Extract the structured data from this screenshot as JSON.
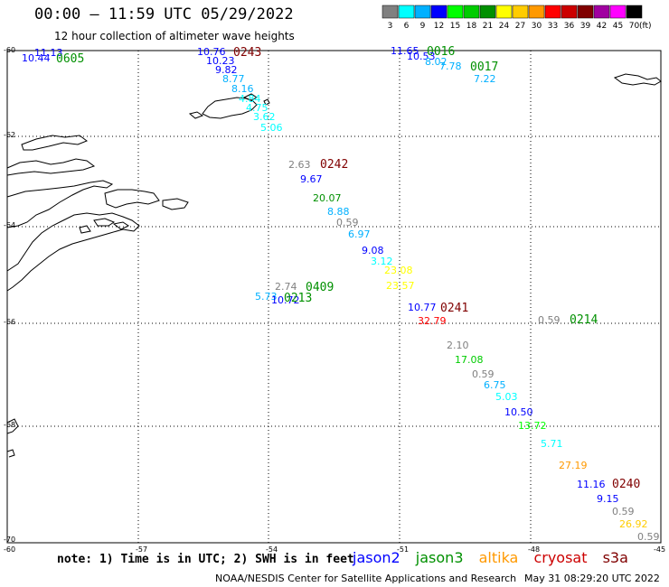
{
  "header": {
    "title": "00:00 – 11:59 UTC 05/29/2022",
    "subtitle": "12 hour collection of altimeter wave heights"
  },
  "legend": {
    "unit": "(ft)",
    "bins": [
      {
        "label": "3",
        "color": "#808080"
      },
      {
        "label": "6",
        "color": "#00ffff"
      },
      {
        "label": "9",
        "color": "#00b0ff"
      },
      {
        "label": "12",
        "color": "#0000ff"
      },
      {
        "label": "15",
        "color": "#00ff00"
      },
      {
        "label": "18",
        "color": "#00cc00"
      },
      {
        "label": "21",
        "color": "#009000"
      },
      {
        "label": "24",
        "color": "#ffff00"
      },
      {
        "label": "27",
        "color": "#ffcc00"
      },
      {
        "label": "30",
        "color": "#ff9900"
      },
      {
        "label": "33",
        "color": "#ff0000"
      },
      {
        "label": "36",
        "color": "#cc0000"
      },
      {
        "label": "39",
        "color": "#800000"
      },
      {
        "label": "42",
        "color": "#a000a0"
      },
      {
        "label": "45",
        "color": "#ff00ff"
      },
      {
        "label": "70",
        "color": "#000000"
      }
    ]
  },
  "axes": {
    "lat_labels": [
      "-60",
      "-62",
      "-64",
      "-66",
      "-68",
      "-70"
    ],
    "lon_labels": [
      "-60",
      "-57",
      "-54",
      "-51",
      "-48",
      "-45"
    ],
    "lon_range": [
      -60,
      -45
    ],
    "lat_range": [
      -70,
      -60
    ]
  },
  "swh_points": [
    {
      "text": "11.13",
      "color": "#0000ff"
    },
    {
      "text": "10.44",
      "color": "#0000ff"
    },
    {
      "text": "0605",
      "color": "#009000"
    },
    {
      "text": "10.76",
      "color": "#0000ff"
    },
    {
      "text": "0243",
      "color": "#800000"
    },
    {
      "text": "10.23",
      "color": "#0000ff"
    },
    {
      "text": "9.82",
      "color": "#0000ff"
    },
    {
      "text": "8.77",
      "color": "#00b0ff"
    },
    {
      "text": "8.16",
      "color": "#00b0ff"
    },
    {
      "text": "4.84",
      "color": "#00ffff"
    },
    {
      "text": "4.75",
      "color": "#00ffff"
    },
    {
      "text": "3.62",
      "color": "#00ffff"
    },
    {
      "text": "5.06",
      "color": "#00ffff"
    },
    {
      "text": "11.65",
      "color": "#0000ff"
    },
    {
      "text": "0016",
      "color": "#009000"
    },
    {
      "text": "10.53",
      "color": "#0000ff"
    },
    {
      "text": "8.02",
      "color": "#00b0ff"
    },
    {
      "text": "7.78",
      "color": "#00b0ff"
    },
    {
      "text": "0017",
      "color": "#009000"
    },
    {
      "text": "7.22",
      "color": "#00b0ff"
    },
    {
      "text": "2.63",
      "color": "#808080"
    },
    {
      "text": "0242",
      "color": "#800000"
    },
    {
      "text": "9.67",
      "color": "#0000ff"
    },
    {
      "text": "20.07",
      "color": "#009000"
    },
    {
      "text": "8.88",
      "color": "#00b0ff"
    },
    {
      "text": "0.59",
      "color": "#808080"
    },
    {
      "text": "6.97",
      "color": "#00b0ff"
    },
    {
      "text": "9.08",
      "color": "#0000ff"
    },
    {
      "text": "3.12",
      "color": "#00ffff"
    },
    {
      "text": "23.08",
      "color": "#ffff00"
    },
    {
      "text": "2.74",
      "color": "#808080"
    },
    {
      "text": "0409",
      "color": "#009000"
    },
    {
      "text": "5.73",
      "color": "#00b0ff"
    },
    {
      "text": "10.72",
      "color": "#0000ff"
    },
    {
      "text": "0213",
      "color": "#009000"
    },
    {
      "text": "23.57",
      "color": "#ffff00"
    },
    {
      "text": "10.77",
      "color": "#0000ff"
    },
    {
      "text": "0241",
      "color": "#800000"
    },
    {
      "text": "32.79",
      "color": "#ff0000"
    },
    {
      "text": "0.59",
      "color": "#808080"
    },
    {
      "text": "0214",
      "color": "#009000"
    },
    {
      "text": "2.10",
      "color": "#808080"
    },
    {
      "text": "17.08",
      "color": "#00cc00"
    },
    {
      "text": "0.59",
      "color": "#808080"
    },
    {
      "text": "6.75",
      "color": "#00b0ff"
    },
    {
      "text": "5.03",
      "color": "#00ffff"
    },
    {
      "text": "10.50",
      "color": "#0000ff"
    },
    {
      "text": "13.72",
      "color": "#00ff00"
    },
    {
      "text": "5.71",
      "color": "#00ffff"
    },
    {
      "text": "27.19",
      "color": "#ff9900"
    },
    {
      "text": "11.16",
      "color": "#0000ff"
    },
    {
      "text": "0240",
      "color": "#800000"
    },
    {
      "text": "9.15",
      "color": "#0000ff"
    },
    {
      "text": "0.59",
      "color": "#808080"
    },
    {
      "text": "26.92",
      "color": "#ffcc00"
    },
    {
      "text": "0.59",
      "color": "#808080"
    }
  ],
  "footer": {
    "note": "note: 1) Time is in UTC; 2) SWH is in feet",
    "credit": "NOAA/NESDIS Center for Satellite Applications and Research",
    "timestamp": "May 31 08:29:20 UTC 2022"
  },
  "satellites": [
    {
      "name": "jason2",
      "color": "#0000ff"
    },
    {
      "name": "jason3",
      "color": "#009000"
    },
    {
      "name": "altika",
      "color": "#ff9900"
    },
    {
      "name": "cryosat",
      "color": "#cc0000"
    },
    {
      "name": "s3a",
      "color": "#800000"
    }
  ]
}
